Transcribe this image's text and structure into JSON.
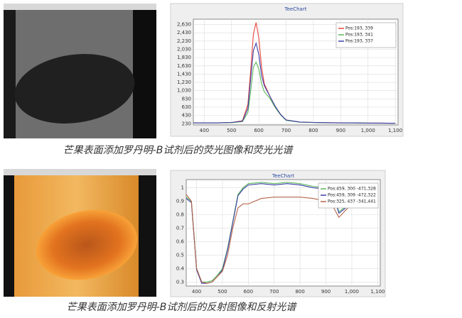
{
  "chart_data": [
    {
      "type": "line",
      "title": "TeeChart",
      "x": [
        360,
        400,
        450,
        500,
        540,
        560,
        570,
        580,
        590,
        600,
        610,
        620,
        640,
        660,
        680,
        700,
        750,
        800,
        850,
        900,
        950,
        1000,
        1050,
        1100
      ],
      "series": [
        {
          "name": "Pos:193, 339",
          "color": "#e8453c",
          "values": [
            250,
            250,
            250,
            260,
            300,
            700,
            1500,
            2400,
            2680,
            2300,
            1600,
            1200,
            900,
            650,
            450,
            320,
            270,
            260,
            255,
            250,
            250,
            245,
            245,
            240
          ]
        },
        {
          "name": "Pos:193, 341",
          "color": "#5cb85c",
          "values": [
            250,
            250,
            250,
            255,
            280,
            500,
            1000,
            1600,
            1720,
            1550,
            1200,
            1000,
            850,
            620,
            440,
            310,
            265,
            258,
            252,
            250,
            248,
            245,
            242,
            240
          ]
        },
        {
          "name": "Pos:193, 337",
          "color": "#3a3fa8",
          "values": [
            250,
            250,
            250,
            260,
            290,
            600,
            1300,
            2000,
            2180,
            1900,
            1400,
            1150,
            900,
            650,
            450,
            320,
            270,
            260,
            255,
            250,
            250,
            245,
            245,
            240
          ]
        }
      ],
      "xlim": [
        360,
        1110
      ],
      "xticks": [
        400,
        500,
        600,
        700,
        800,
        900,
        {
          "value": 1000,
          "label": "1,000"
        },
        {
          "value": 1100,
          "label": "1,100"
        }
      ],
      "ylim": [
        200,
        2760
      ],
      "yticks": [
        230,
        430,
        630,
        830,
        {
          "value": 1030,
          "label": "1,030"
        },
        {
          "value": 1230,
          "label": "1,230"
        },
        {
          "value": 1430,
          "label": "1,430"
        },
        {
          "value": 1630,
          "label": "1,630"
        },
        {
          "value": 1830,
          "label": "1,830"
        },
        {
          "value": 2030,
          "label": "2,030"
        },
        {
          "value": 2230,
          "label": "2,230"
        },
        {
          "value": 2430,
          "label": "2,430"
        },
        {
          "value": 2630,
          "label": "2,630"
        }
      ],
      "grid": true,
      "legend": "upper right",
      "caption": "芒果表面添加罗丹明-B试剂后的荧光图像和荧光光谱"
    },
    {
      "type": "line",
      "title": "TeeChart",
      "x": [
        360,
        380,
        400,
        420,
        440,
        460,
        480,
        500,
        520,
        540,
        560,
        580,
        600,
        650,
        700,
        750,
        800,
        850,
        900,
        930,
        950,
        970,
        1000,
        1050,
        1100
      ],
      "series": [
        {
          "name": "Pos:459, 300 -471,328",
          "color": "#5cb85c",
          "values": [
            0.93,
            0.9,
            0.4,
            0.3,
            0.3,
            0.31,
            0.35,
            0.4,
            0.55,
            0.75,
            0.95,
            1.0,
            1.03,
            1.04,
            1.03,
            1.04,
            1.03,
            1.01,
            1.0,
            0.95,
            0.82,
            0.85,
            0.9,
            0.95,
            0.97
          ]
        },
        {
          "name": "Pos:459, 309 -472,322",
          "color": "#3a3fa8",
          "values": [
            0.92,
            0.89,
            0.39,
            0.29,
            0.29,
            0.3,
            0.34,
            0.39,
            0.54,
            0.74,
            0.94,
            0.99,
            1.02,
            1.03,
            1.02,
            1.03,
            1.02,
            1.0,
            0.99,
            0.94,
            0.81,
            0.84,
            0.89,
            0.94,
            0.96
          ]
        },
        {
          "name": "Pos:325, 437 -341,441",
          "color": "#b5654a",
          "values": [
            0.95,
            0.9,
            0.4,
            0.3,
            0.29,
            0.3,
            0.34,
            0.38,
            0.5,
            0.7,
            0.85,
            0.88,
            0.88,
            0.92,
            0.93,
            0.93,
            0.93,
            0.92,
            0.9,
            0.85,
            0.78,
            0.82,
            0.88,
            0.95,
            0.98
          ]
        }
      ],
      "xlim": [
        360,
        1110
      ],
      "xticks": [
        400,
        500,
        600,
        700,
        800,
        900,
        {
          "value": 1000,
          "label": "1,000"
        },
        {
          "value": 1100,
          "label": "1,100"
        }
      ],
      "ylim": [
        0.27,
        1.06
      ],
      "yticks": [
        0.3,
        0.4,
        0.5,
        0.6,
        0.7,
        0.8,
        0.9,
        1
      ],
      "grid": true,
      "legend": "upper right",
      "caption": "芒果表面添加罗丹明-B试剂后的反射图像和反射光谱"
    }
  ]
}
